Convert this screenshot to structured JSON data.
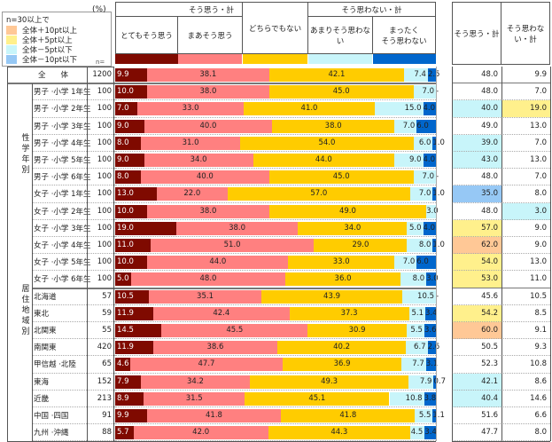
{
  "legend": {
    "title": "n=30以上で",
    "items": [
      {
        "label": "全体＋10pt以上",
        "color": "#FFC896"
      },
      {
        "label": "全体＋5pt以上",
        "color": "#FFF08C"
      },
      {
        "label": "全体－5pt以下",
        "color": "#C8F5FA"
      },
      {
        "label": "全体－10pt以下",
        "color": "#96C8F5"
      }
    ]
  },
  "pct_unit": "(%)",
  "n_label": "n=",
  "headers": {
    "group_agree": "そう思う・計",
    "group_disagree": "そう思わない・計",
    "categories": [
      "とてもそう思う",
      "まあそう思う",
      "どちらでもない",
      "あまりそう思わない",
      "まったく\nそう思わない"
    ],
    "sum_agree": "そう思う・計",
    "sum_disagree": "そう思わない・計"
  },
  "colors": {
    "series": [
      "#7F0A00",
      "#FF8080",
      "#FFCC00",
      "#C8F5FA",
      "#0066CC"
    ],
    "highlight_plus10": "#FFC896",
    "highlight_plus5": "#FFF08C",
    "highlight_minus5": "#C8F5FA",
    "highlight_minus10": "#96C8F5"
  },
  "groups": [
    {
      "label": "性学年別",
      "start": 1,
      "end": 12
    },
    {
      "label": "居住地域別",
      "start": 13,
      "end": 21
    }
  ],
  "chart_data": {
    "type": "bar",
    "orientation": "horizontal-stacked-100",
    "series_names": [
      "とてもそう思う",
      "まあそう思う",
      "どちらでもない",
      "あまりそう思わない",
      "まったくそう思わない"
    ],
    "rows": [
      {
        "label": "全　　体",
        "n": "1200",
        "values": [
          9.9,
          38.1,
          42.1,
          7.4,
          2.5
        ],
        "labels": [
          "9.9",
          "38.1",
          "42.1",
          "7.4",
          "2.5"
        ],
        "agree": "48.0",
        "disagree": "9.9",
        "hl_agree": "",
        "hl_disagree": ""
      },
      {
        "label": "男子 ·小学 1年生",
        "n": "100",
        "values": [
          10.0,
          38.0,
          45.0,
          7.0,
          0.0
        ],
        "labels": [
          "10.0",
          "38.0",
          "45.0",
          "7.0",
          "-"
        ],
        "agree": "48.0",
        "disagree": "7.0",
        "hl_agree": "",
        "hl_disagree": ""
      },
      {
        "label": "男子 ·小学 2年生",
        "n": "100",
        "values": [
          7.0,
          33.0,
          41.0,
          15.0,
          4.0
        ],
        "labels": [
          "7.0",
          "33.0",
          "41.0",
          "15.0",
          "4.0"
        ],
        "agree": "40.0",
        "disagree": "19.0",
        "hl_agree": "minus5",
        "hl_disagree": "plus5"
      },
      {
        "label": "男子 ·小学 3年生",
        "n": "100",
        "values": [
          9.0,
          40.0,
          38.0,
          7.0,
          6.0
        ],
        "labels": [
          "9.0",
          "40.0",
          "38.0",
          "7.0",
          "6.0"
        ],
        "agree": "49.0",
        "disagree": "13.0",
        "hl_agree": "",
        "hl_disagree": ""
      },
      {
        "label": "男子 ·小学 4年生",
        "n": "100",
        "values": [
          8.0,
          31.0,
          54.0,
          6.0,
          1.0
        ],
        "labels": [
          "8.0",
          "31.0",
          "54.0",
          "6.0",
          "1.0"
        ],
        "agree": "39.0",
        "disagree": "7.0",
        "hl_agree": "minus5",
        "hl_disagree": ""
      },
      {
        "label": "男子 ·小学 5年生",
        "n": "100",
        "values": [
          9.0,
          34.0,
          44.0,
          9.0,
          4.0
        ],
        "labels": [
          "9.0",
          "34.0",
          "44.0",
          "9.0",
          "4.0"
        ],
        "agree": "43.0",
        "disagree": "13.0",
        "hl_agree": "minus5",
        "hl_disagree": ""
      },
      {
        "label": "男子 ·小学 6年生",
        "n": "100",
        "values": [
          8.0,
          40.0,
          45.0,
          7.0,
          0.0
        ],
        "labels": [
          "8.0",
          "40.0",
          "45.0",
          "7.0",
          "-"
        ],
        "agree": "48.0",
        "disagree": "7.0",
        "hl_agree": "",
        "hl_disagree": ""
      },
      {
        "label": "女子 ·小学 1年生",
        "n": "100",
        "values": [
          13.0,
          22.0,
          57.0,
          7.0,
          1.0
        ],
        "labels": [
          "13.0",
          "22.0",
          "57.0",
          "7.0",
          "1.0"
        ],
        "agree": "35.0",
        "disagree": "8.0",
        "hl_agree": "minus10",
        "hl_disagree": ""
      },
      {
        "label": "女子 ·小学 2年生",
        "n": "100",
        "values": [
          10.0,
          38.0,
          49.0,
          3.0,
          0.0
        ],
        "labels": [
          "10.0",
          "38.0",
          "49.0",
          "3.0",
          ""
        ],
        "agree": "48.0",
        "disagree": "3.0",
        "hl_agree": "",
        "hl_disagree": "minus5"
      },
      {
        "label": "女子 ·小学 3年生",
        "n": "100",
        "values": [
          19.0,
          38.0,
          34.0,
          5.0,
          4.0
        ],
        "labels": [
          "19.0",
          "38.0",
          "34.0",
          "5.0",
          "4.0"
        ],
        "agree": "57.0",
        "disagree": "9.0",
        "hl_agree": "plus5",
        "hl_disagree": ""
      },
      {
        "label": "女子 ·小学 4年生",
        "n": "100",
        "values": [
          11.0,
          51.0,
          29.0,
          8.0,
          1.0
        ],
        "labels": [
          "11.0",
          "51.0",
          "29.0",
          "8.0",
          "1.0"
        ],
        "agree": "62.0",
        "disagree": "9.0",
        "hl_agree": "plus10",
        "hl_disagree": ""
      },
      {
        "label": "女子 ·小学 5年生",
        "n": "100",
        "values": [
          10.0,
          44.0,
          33.0,
          7.0,
          6.0
        ],
        "labels": [
          "10.0",
          "44.0",
          "33.0",
          "7.0",
          "6.0"
        ],
        "agree": "54.0",
        "disagree": "13.0",
        "hl_agree": "plus5",
        "hl_disagree": ""
      },
      {
        "label": "女子 ·小学 6年生",
        "n": "100",
        "values": [
          5.0,
          48.0,
          36.0,
          8.0,
          3.0
        ],
        "labels": [
          "5.0",
          "48.0",
          "36.0",
          "8.0",
          "3.0"
        ],
        "agree": "53.0",
        "disagree": "11.0",
        "hl_agree": "plus5",
        "hl_disagree": ""
      },
      {
        "label": "北海道",
        "n": "57",
        "values": [
          10.5,
          35.1,
          43.9,
          10.5,
          0.0
        ],
        "labels": [
          "10.5",
          "35.1",
          "43.9",
          "10.5",
          "-"
        ],
        "agree": "45.6",
        "disagree": "10.5",
        "hl_agree": "",
        "hl_disagree": ""
      },
      {
        "label": "東北",
        "n": "59",
        "values": [
          11.9,
          42.4,
          37.3,
          5.1,
          3.4
        ],
        "labels": [
          "11.9",
          "42.4",
          "37.3",
          "5.1",
          "3.4"
        ],
        "agree": "54.2",
        "disagree": "8.5",
        "hl_agree": "plus5",
        "hl_disagree": ""
      },
      {
        "label": "北関東",
        "n": "55",
        "values": [
          14.5,
          45.5,
          30.9,
          5.5,
          3.6
        ],
        "labels": [
          "14.5",
          "45.5",
          "30.9",
          "5.5",
          "3.6"
        ],
        "agree": "60.0",
        "disagree": "9.1",
        "hl_agree": "plus10",
        "hl_disagree": ""
      },
      {
        "label": "南関東",
        "n": "420",
        "values": [
          11.9,
          38.6,
          40.2,
          6.7,
          2.6
        ],
        "labels": [
          "11.9",
          "38.6",
          "40.2",
          "6.7",
          "2.6"
        ],
        "agree": "50.5",
        "disagree": "9.3",
        "hl_agree": "",
        "hl_disagree": ""
      },
      {
        "label": "甲信越 ·北陸",
        "n": "65",
        "values": [
          4.6,
          47.7,
          36.9,
          7.7,
          3.1
        ],
        "labels": [
          "4.6",
          "47.7",
          "36.9",
          "7.7",
          "3.1"
        ],
        "agree": "52.3",
        "disagree": "10.8",
        "hl_agree": "",
        "hl_disagree": ""
      },
      {
        "label": "東海",
        "n": "152",
        "values": [
          7.9,
          34.2,
          49.3,
          7.9,
          0.7
        ],
        "labels": [
          "7.9",
          "34.2",
          "49.3",
          "7.9",
          "0.7"
        ],
        "agree": "42.1",
        "disagree": "8.6",
        "hl_agree": "minus5",
        "hl_disagree": ""
      },
      {
        "label": "近畿",
        "n": "213",
        "values": [
          8.9,
          31.5,
          45.1,
          10.8,
          3.8
        ],
        "labels": [
          "8.9",
          "31.5",
          "45.1",
          "10.8",
          "3.8"
        ],
        "agree": "40.4",
        "disagree": "14.6",
        "hl_agree": "minus5",
        "hl_disagree": ""
      },
      {
        "label": "中国 ·四国",
        "n": "91",
        "values": [
          9.9,
          41.8,
          41.8,
          5.5,
          1.1
        ],
        "labels": [
          "9.9",
          "41.8",
          "41.8",
          "5.5",
          "1.1"
        ],
        "agree": "51.6",
        "disagree": "6.6",
        "hl_agree": "",
        "hl_disagree": ""
      },
      {
        "label": "九州 ·沖縄",
        "n": "88",
        "values": [
          5.7,
          42.0,
          44.3,
          4.5,
          3.4
        ],
        "labels": [
          "5.7",
          "42.0",
          "44.3",
          "4.5",
          "3.4"
        ],
        "agree": "47.7",
        "disagree": "8.0",
        "hl_agree": "",
        "hl_disagree": ""
      }
    ]
  }
}
